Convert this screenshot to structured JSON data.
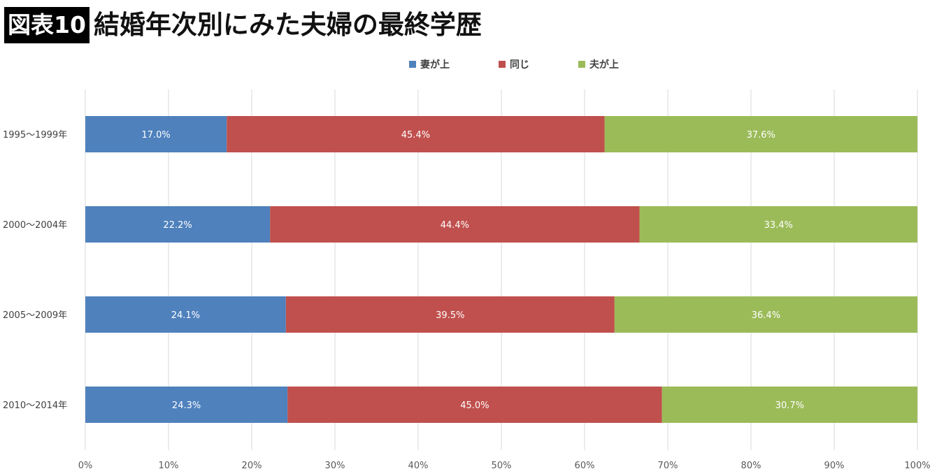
{
  "header": {
    "badge": "図表10",
    "title": "結婚年次別にみた夫婦の最終学歴"
  },
  "chart_data": {
    "type": "bar",
    "orientation": "horizontal",
    "stacked": true,
    "percent_stacked": true,
    "categories": [
      "1995〜1999年",
      "2000〜2004年",
      "2005〜2009年",
      "2010〜2014年"
    ],
    "series": [
      {
        "name": "妻が上",
        "color": "#4f81bd",
        "values": [
          17.0,
          22.2,
          24.1,
          24.3
        ],
        "labels": [
          "17.0%",
          "22.2%",
          "24.1%",
          "24.3%"
        ]
      },
      {
        "name": "同じ",
        "color": "#c0504d",
        "values": [
          45.4,
          44.4,
          39.5,
          45.0
        ],
        "labels": [
          "45.4%",
          "44.4%",
          "39.5%",
          "45.0%"
        ]
      },
      {
        "name": "夫が上",
        "color": "#9bbb59",
        "values": [
          37.6,
          33.4,
          36.4,
          30.7
        ],
        "labels": [
          "37.6%",
          "33.4%",
          "36.4%",
          "30.7%"
        ]
      }
    ],
    "x_ticks": [
      "0%",
      "10%",
      "20%",
      "30%",
      "40%",
      "50%",
      "60%",
      "70%",
      "80%",
      "90%",
      "100%"
    ],
    "xlim": [
      0,
      100
    ],
    "grid": true,
    "legend_position": "top"
  }
}
